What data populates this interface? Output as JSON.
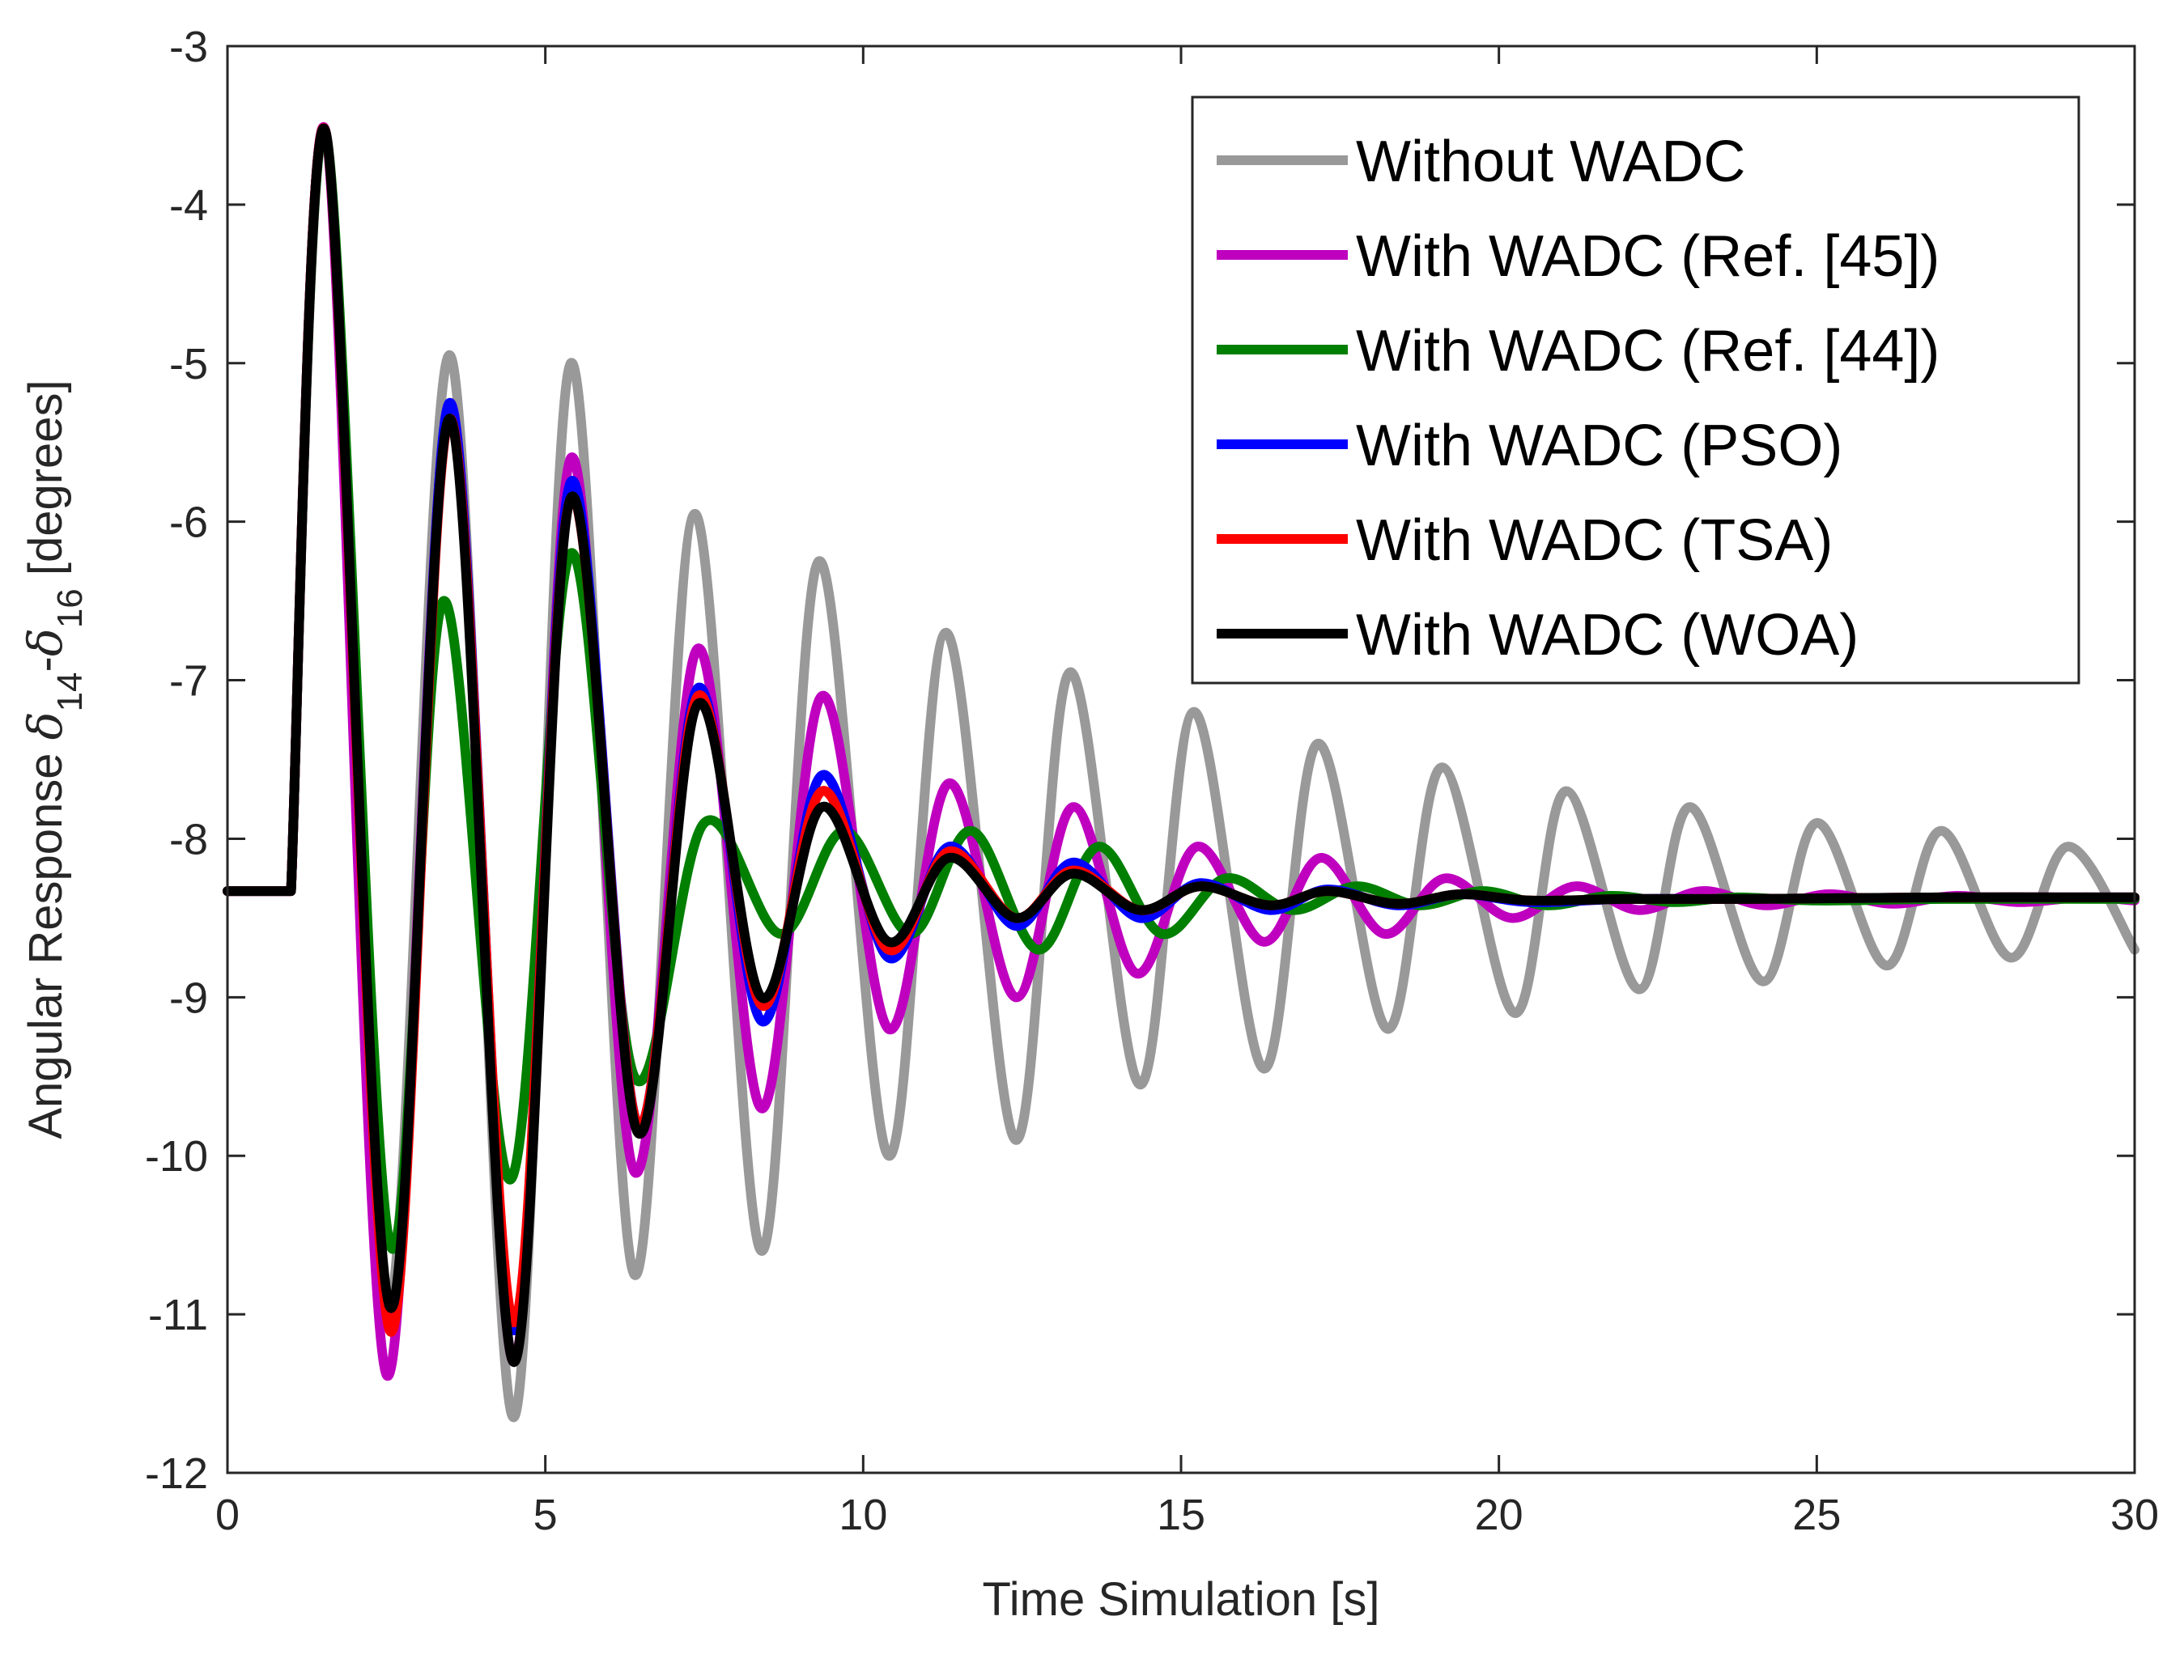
{
  "chart_data": {
    "type": "line",
    "title": "",
    "xlabel": "Time Simulation [s]",
    "ylabel": {
      "prefix": "Angular Response ",
      "symbol": "δ",
      "sub1": "14",
      "dash": "-",
      "sub2": "16",
      "suffix": " [degrees]"
    },
    "xlim": [
      0,
      30
    ],
    "ylim": [
      -12,
      -3
    ],
    "xticks": [
      "0",
      "5",
      "10",
      "15",
      "20",
      "25",
      "30"
    ],
    "xtick_values": [
      0,
      5,
      10,
      15,
      20,
      25,
      30
    ],
    "yticks": [
      "-12",
      "-11",
      "-10",
      "-9",
      "-8",
      "-7",
      "-6",
      "-5",
      "-4",
      "-3"
    ],
    "ytick_values": [
      -12,
      -11,
      -10,
      -9,
      -8,
      -7,
      -6,
      -5,
      -4,
      -3
    ],
    "grid": false,
    "legend_position": "top-right",
    "series": [
      {
        "name": "Without WADC",
        "color": "#999999",
        "x": [
          0,
          1.0,
          1.55,
          2.5,
          3.5,
          4.5,
          5.4,
          6.4,
          7.35,
          8.4,
          9.3,
          10.4,
          11.3,
          12.4,
          13.25,
          14.35,
          15.2,
          16.3,
          17.15,
          18.25,
          19.1,
          20.25,
          21.05,
          22.2,
          23.0,
          24.15,
          25.0,
          26.1,
          26.95,
          28.05,
          28.95,
          30.0
        ],
        "values": [
          -8.33,
          -8.33,
          -3.55,
          -11.0,
          -4.95,
          -11.65,
          -5.0,
          -10.75,
          -5.95,
          -10.6,
          -6.25,
          -10.0,
          -6.7,
          -9.9,
          -6.95,
          -9.55,
          -7.2,
          -9.45,
          -7.4,
          -9.2,
          -7.55,
          -9.1,
          -7.7,
          -8.95,
          -7.8,
          -8.9,
          -7.9,
          -8.8,
          -7.95,
          -8.75,
          -8.05,
          -8.7
        ]
      },
      {
        "name": "With WADC (Ref. [45])",
        "color": "#BF00BF",
        "x": [
          0,
          1.0,
          1.55,
          2.5,
          3.5,
          4.5,
          5.4,
          6.4,
          7.4,
          8.4,
          9.35,
          10.4,
          11.35,
          12.4,
          13.3,
          14.3,
          15.25,
          16.3,
          17.2,
          18.2,
          19.15,
          20.2,
          21.2,
          22.2,
          23.2,
          24.2,
          25.2,
          26.2,
          27.2,
          28.2,
          29.2,
          30.0
        ],
        "values": [
          -8.33,
          -8.33,
          -3.55,
          -11.38,
          -5.25,
          -11.3,
          -5.6,
          -10.1,
          -6.8,
          -9.7,
          -7.1,
          -9.2,
          -7.65,
          -9.0,
          -7.8,
          -8.85,
          -8.05,
          -8.65,
          -8.12,
          -8.6,
          -8.25,
          -8.5,
          -8.3,
          -8.45,
          -8.33,
          -8.42,
          -8.35,
          -8.41,
          -8.36,
          -8.4,
          -8.37,
          -8.39
        ]
      },
      {
        "name": "With WADC (Ref. [44])",
        "color": "#007F00",
        "x": [
          0,
          1.0,
          1.55,
          2.55,
          3.4,
          4.45,
          5.4,
          6.4,
          7.5,
          8.7,
          9.7,
          10.75,
          11.7,
          12.75,
          13.7,
          14.7,
          15.7,
          16.75,
          17.75,
          18.75,
          19.75,
          20.75,
          21.75,
          22.75,
          23.75,
          25.0,
          27.0,
          30.0
        ],
        "values": [
          -8.33,
          -8.33,
          -3.55,
          -10.55,
          -6.5,
          -10.15,
          -6.2,
          -9.5,
          -7.9,
          -8.6,
          -7.95,
          -8.6,
          -7.95,
          -8.7,
          -8.05,
          -8.6,
          -8.25,
          -8.45,
          -8.3,
          -8.42,
          -8.33,
          -8.42,
          -8.36,
          -8.4,
          -8.37,
          -8.39,
          -8.38,
          -8.38
        ]
      },
      {
        "name": "With WADC (PSO)",
        "color": "#0000FF",
        "x": [
          0,
          1.0,
          1.55,
          2.55,
          3.5,
          4.5,
          5.4,
          6.45,
          7.4,
          8.4,
          9.35,
          10.4,
          11.35,
          12.4,
          13.3,
          14.35,
          15.3,
          16.4,
          17.3,
          18.4,
          19.4,
          20.5,
          22.0,
          24.0,
          27.0,
          30.0
        ],
        "values": [
          -8.33,
          -8.33,
          -3.55,
          -11.05,
          -5.25,
          -11.1,
          -5.75,
          -9.8,
          -7.05,
          -9.15,
          -7.6,
          -8.75,
          -8.05,
          -8.55,
          -8.15,
          -8.5,
          -8.28,
          -8.45,
          -8.32,
          -8.42,
          -8.35,
          -8.4,
          -8.38,
          -8.38,
          -8.37,
          -8.37
        ]
      },
      {
        "name": "With WADC (TSA)",
        "color": "#FF0000",
        "x": [
          0,
          1.0,
          1.55,
          2.55,
          3.5,
          4.5,
          5.4,
          6.45,
          7.4,
          8.4,
          9.35,
          10.4,
          11.35,
          12.4,
          13.3,
          14.35,
          15.3,
          16.4,
          17.3,
          18.4,
          19.4,
          20.5,
          22.0,
          24.0,
          27.0,
          30.0
        ],
        "values": [
          -8.33,
          -8.33,
          -3.55,
          -11.1,
          -5.35,
          -11.05,
          -5.85,
          -9.8,
          -7.1,
          -9.05,
          -7.7,
          -8.7,
          -8.08,
          -8.5,
          -8.2,
          -8.45,
          -8.3,
          -8.42,
          -8.33,
          -8.41,
          -8.35,
          -8.39,
          -8.38,
          -8.38,
          -8.37,
          -8.37
        ]
      },
      {
        "name": "With WADC (WOA)",
        "color": "#000000",
        "x": [
          0,
          1.0,
          1.55,
          2.55,
          3.5,
          4.5,
          5.4,
          6.45,
          7.4,
          8.4,
          9.35,
          10.4,
          11.35,
          12.4,
          13.3,
          14.35,
          15.3,
          16.4,
          17.3,
          18.4,
          19.4,
          20.5,
          22.0,
          24.0,
          27.0,
          30.0
        ],
        "values": [
          -8.33,
          -8.33,
          -3.55,
          -10.95,
          -5.35,
          -11.3,
          -5.85,
          -9.85,
          -7.15,
          -9.0,
          -7.8,
          -8.65,
          -8.12,
          -8.5,
          -8.22,
          -8.45,
          -8.3,
          -8.42,
          -8.33,
          -8.41,
          -8.35,
          -8.39,
          -8.38,
          -8.38,
          -8.37,
          -8.37
        ]
      }
    ]
  }
}
